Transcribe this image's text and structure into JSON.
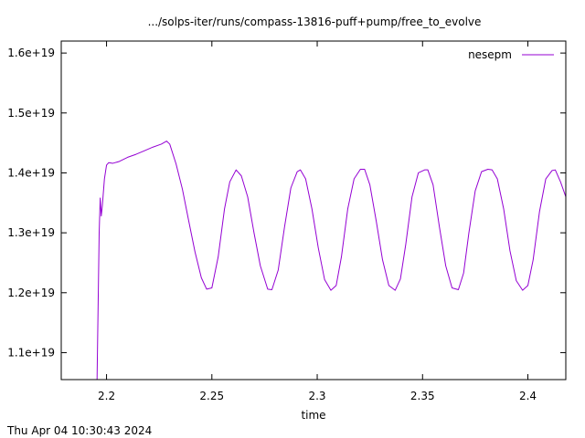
{
  "timestamp": "Thu Apr 04 10:30:43 2024",
  "chart_data": {
    "type": "line",
    "title": ".../solps-iter/runs/compass-13816-puff+pump/free_to_evolve",
    "xlabel": "time",
    "ylabel": "",
    "xlim": [
      2.1785,
      2.418
    ],
    "ylim": [
      1.055e+19,
      1.62e+19
    ],
    "xticks": [
      {
        "value": 2.2,
        "label": "2.2"
      },
      {
        "value": 2.25,
        "label": "2.25"
      },
      {
        "value": 2.3,
        "label": "2.3"
      },
      {
        "value": 2.35,
        "label": "2.35"
      },
      {
        "value": 2.4,
        "label": "2.4"
      }
    ],
    "yticks": [
      {
        "value": 1.1e+19,
        "label": "1.1e+19"
      },
      {
        "value": 1.2e+19,
        "label": "1.2e+19"
      },
      {
        "value": 1.3e+19,
        "label": "1.3e+19"
      },
      {
        "value": 1.4e+19,
        "label": "1.4e+19"
      },
      {
        "value": 1.5e+19,
        "label": "1.5e+19"
      },
      {
        "value": 1.6e+19,
        "label": "1.6e+19"
      }
    ],
    "grid": false,
    "legend": "top-right",
    "series": [
      {
        "name": "nesepm",
        "color": "#9400d3",
        "x": [
          2.1955,
          2.1965,
          2.197,
          2.1975,
          2.198,
          2.199,
          2.2,
          2.201,
          2.203,
          2.206,
          2.21,
          2.214,
          2.218,
          2.222,
          2.226,
          2.2285,
          2.23,
          2.233,
          2.236,
          2.239,
          2.242,
          2.245,
          2.2475,
          2.25,
          2.253,
          2.256,
          2.2585,
          2.2615,
          2.264,
          2.267,
          2.27,
          2.273,
          2.2765,
          2.2785,
          2.2815,
          2.2845,
          2.2875,
          2.2905,
          2.292,
          2.2945,
          2.2975,
          2.3005,
          2.3035,
          2.3065,
          2.309,
          2.3115,
          2.3145,
          2.3175,
          2.3205,
          2.3225,
          2.325,
          2.328,
          2.331,
          2.334,
          2.337,
          2.3395,
          2.342,
          2.345,
          2.348,
          2.351,
          2.3525,
          2.355,
          2.358,
          2.361,
          2.364,
          2.367,
          2.3695,
          2.372,
          2.375,
          2.378,
          2.381,
          2.383,
          2.3855,
          2.3885,
          2.3915,
          2.3945,
          2.3975,
          2.4,
          2.4025,
          2.4055,
          2.4085,
          2.4115,
          2.413,
          2.4155,
          2.418
        ],
        "y": [
          1.055e+19,
          1.3e+19,
          1.358e+19,
          1.328e+19,
          1.345e+19,
          1.39e+19,
          1.413e+19,
          1.417e+19,
          1.416e+19,
          1.419e+19,
          1.426e+19,
          1.431e+19,
          1.437e+19,
          1.443e+19,
          1.448e+19,
          1.453e+19,
          1.448e+19,
          1.415e+19,
          1.373e+19,
          1.32e+19,
          1.268e+19,
          1.225e+19,
          1.206e+19,
          1.208e+19,
          1.26e+19,
          1.34e+19,
          1.385e+19,
          1.405e+19,
          1.395e+19,
          1.36e+19,
          1.3e+19,
          1.245e+19,
          1.206e+19,
          1.205e+19,
          1.238e+19,
          1.31e+19,
          1.375e+19,
          1.402e+19,
          1.405e+19,
          1.39e+19,
          1.34e+19,
          1.275e+19,
          1.222e+19,
          1.204e+19,
          1.212e+19,
          1.26e+19,
          1.34e+19,
          1.39e+19,
          1.406e+19,
          1.406e+19,
          1.38e+19,
          1.32e+19,
          1.255e+19,
          1.212e+19,
          1.204e+19,
          1.223e+19,
          1.28e+19,
          1.36e+19,
          1.4e+19,
          1.405e+19,
          1.405e+19,
          1.38e+19,
          1.31e+19,
          1.245e+19,
          1.208e+19,
          1.205e+19,
          1.233e+19,
          1.3e+19,
          1.37e+19,
          1.402e+19,
          1.406e+19,
          1.405e+19,
          1.39e+19,
          1.34e+19,
          1.27e+19,
          1.22e+19,
          1.204e+19,
          1.212e+19,
          1.255e+19,
          1.335e+19,
          1.39e+19,
          1.404e+19,
          1.405e+19,
          1.385e+19,
          1.36e+19
        ]
      }
    ]
  }
}
